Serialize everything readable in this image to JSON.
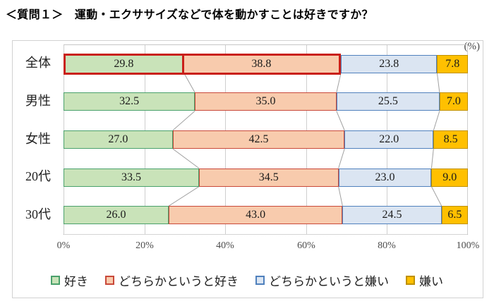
{
  "title": "＜質問１＞　運動・エクササイズなどで体を動かすことは好きですか？",
  "unit_label": "(%)",
  "chart_data": {
    "type": "bar",
    "subtype": "stacked-horizontal",
    "question": "運動・エクササイズなどで体を動かすことは好きですか？",
    "categories": [
      "全体",
      "男性",
      "女性",
      "20代",
      "30代"
    ],
    "series": [
      {
        "name": "好き",
        "fill": "#c9e3b9",
        "stroke": "#4aa16c",
        "values": [
          29.8,
          32.5,
          27.0,
          33.5,
          26.0
        ]
      },
      {
        "name": "どちらかというと好き",
        "fill": "#f8cbad",
        "stroke": "#c9493a",
        "values": [
          38.8,
          35.0,
          42.5,
          34.5,
          43.0
        ]
      },
      {
        "name": "どちらかというと嫌い",
        "fill": "#dbe5f2",
        "stroke": "#5081bd",
        "values": [
          23.8,
          25.5,
          22.0,
          23.0,
          24.5
        ]
      },
      {
        "name": "嫌い",
        "fill": "#ffc000",
        "stroke": "#bf9000",
        "values": [
          7.8,
          7.0,
          8.5,
          9.0,
          6.5
        ]
      }
    ],
    "xticks": [
      "0%",
      "20%",
      "40%",
      "60%",
      "80%",
      "100%"
    ],
    "xlim": [
      0,
      100
    ],
    "value_format": "one-decimal",
    "grid": true,
    "legend_position": "bottom",
    "highlight": {
      "category": "全体",
      "row_index": 0,
      "segment_indexes": [
        0,
        1
      ],
      "color": "#c9201a"
    }
  }
}
